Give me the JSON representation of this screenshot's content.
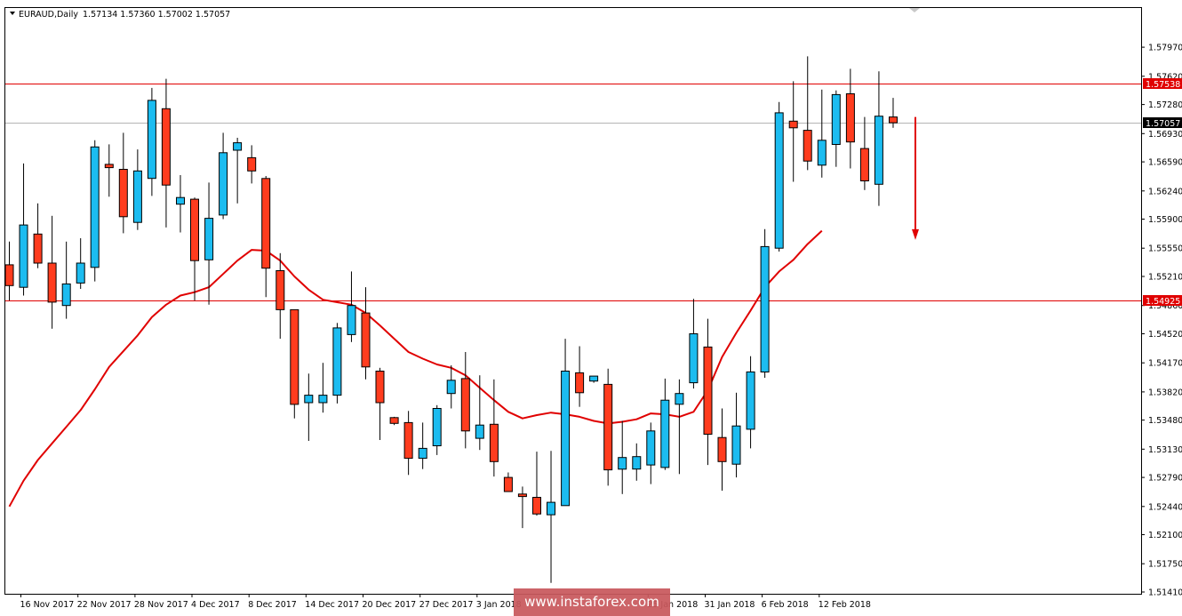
{
  "chart_header": {
    "symbol": "EURAUD,Daily",
    "ohlc": "1.57134 1.57360 1.57002 1.57057"
  },
  "watermark": "www.instaforex.com",
  "colors": {
    "bull_body": "#1cbcf0",
    "bear_body": "#ff3c1e",
    "ma_line": "#e00000",
    "level_line": "#e00000",
    "current_price_line": "#b4b4b4",
    "arrow": "#e00000"
  },
  "chart_data": {
    "type": "candlestick",
    "symbol": "EURAUD",
    "timeframe": "Daily",
    "ylim": [
      1.5141,
      1.581
    ],
    "y_ticks": [
      "1.57970",
      "1.57620",
      "1.57280",
      "1.56930",
      "1.56590",
      "1.56240",
      "1.55900",
      "1.55550",
      "1.55210",
      "1.54860",
      "1.54520",
      "1.54170",
      "1.53820",
      "1.53480",
      "1.53130",
      "1.52790",
      "1.52440",
      "1.52100",
      "1.51750",
      "1.51410"
    ],
    "x_tick_labels": [
      {
        "index": 1,
        "label": "16 Nov 2017"
      },
      {
        "index": 5,
        "label": "22 Nov 2017"
      },
      {
        "index": 9,
        "label": "28 Nov 2017"
      },
      {
        "index": 13,
        "label": "4 Dec 2017"
      },
      {
        "index": 17,
        "label": "8 Dec 2017"
      },
      {
        "index": 21,
        "label": "14 Dec 2017"
      },
      {
        "index": 25,
        "label": "20 Dec 2017"
      },
      {
        "index": 29,
        "label": "27 Dec 2017"
      },
      {
        "index": 33,
        "label": "3 Jan 2018"
      },
      {
        "index": 45,
        "label": "25 Jan 2018"
      },
      {
        "index": 49,
        "label": "31 Jan 2018"
      },
      {
        "index": 53,
        "label": "6 Feb 2018"
      },
      {
        "index": 57,
        "label": "12 Feb 2018"
      }
    ],
    "candles": [
      {
        "o": 1.5535,
        "h": 1.5563,
        "l": 1.5492,
        "c": 1.551
      },
      {
        "o": 1.5508,
        "h": 1.5657,
        "l": 1.5498,
        "c": 1.5583
      },
      {
        "o": 1.5572,
        "h": 1.5609,
        "l": 1.5531,
        "c": 1.5537
      },
      {
        "o": 1.5537,
        "h": 1.5594,
        "l": 1.5458,
        "c": 1.549
      },
      {
        "o": 1.5486,
        "h": 1.5563,
        "l": 1.547,
        "c": 1.5512
      },
      {
        "o": 1.5513,
        "h": 1.5567,
        "l": 1.5506,
        "c": 1.5537
      },
      {
        "o": 1.5532,
        "h": 1.5685,
        "l": 1.5515,
        "c": 1.5677
      },
      {
        "o": 1.5656,
        "h": 1.568,
        "l": 1.5617,
        "c": 1.5652
      },
      {
        "o": 1.565,
        "h": 1.5694,
        "l": 1.5573,
        "c": 1.5593
      },
      {
        "o": 1.5586,
        "h": 1.5674,
        "l": 1.5577,
        "c": 1.5648
      },
      {
        "o": 1.5639,
        "h": 1.5748,
        "l": 1.5618,
        "c": 1.5733
      },
      {
        "o": 1.5723,
        "h": 1.5759,
        "l": 1.558,
        "c": 1.5631
      },
      {
        "o": 1.5608,
        "h": 1.5643,
        "l": 1.5574,
        "c": 1.5616
      },
      {
        "o": 1.5614,
        "h": 1.5616,
        "l": 1.5492,
        "c": 1.554
      },
      {
        "o": 1.5541,
        "h": 1.5634,
        "l": 1.5487,
        "c": 1.5591
      },
      {
        "o": 1.5595,
        "h": 1.5694,
        "l": 1.559,
        "c": 1.567
      },
      {
        "o": 1.5673,
        "h": 1.5688,
        "l": 1.5609,
        "c": 1.5682
      },
      {
        "o": 1.5664,
        "h": 1.5679,
        "l": 1.5633,
        "c": 1.5648
      },
      {
        "o": 1.5639,
        "h": 1.5642,
        "l": 1.5496,
        "c": 1.5531
      },
      {
        "o": 1.5528,
        "h": 1.5549,
        "l": 1.5446,
        "c": 1.5481
      },
      {
        "o": 1.5481,
        "h": 1.5481,
        "l": 1.535,
        "c": 1.5367
      },
      {
        "o": 1.5369,
        "h": 1.5404,
        "l": 1.5323,
        "c": 1.5378
      },
      {
        "o": 1.5369,
        "h": 1.5417,
        "l": 1.5357,
        "c": 1.5378
      },
      {
        "o": 1.5378,
        "h": 1.5465,
        "l": 1.5368,
        "c": 1.5459
      },
      {
        "o": 1.5451,
        "h": 1.5527,
        "l": 1.5442,
        "c": 1.5486
      },
      {
        "o": 1.5477,
        "h": 1.5508,
        "l": 1.5397,
        "c": 1.5412
      },
      {
        "o": 1.5407,
        "h": 1.5411,
        "l": 1.5324,
        "c": 1.5369
      },
      {
        "o": 1.5351,
        "h": 1.5352,
        "l": 1.5342,
        "c": 1.5344
      },
      {
        "o": 1.5345,
        "h": 1.5359,
        "l": 1.5282,
        "c": 1.5302
      },
      {
        "o": 1.5302,
        "h": 1.5345,
        "l": 1.5289,
        "c": 1.5314
      },
      {
        "o": 1.5317,
        "h": 1.5366,
        "l": 1.5306,
        "c": 1.5362
      },
      {
        "o": 1.538,
        "h": 1.5414,
        "l": 1.5362,
        "c": 1.5396
      },
      {
        "o": 1.5398,
        "h": 1.543,
        "l": 1.5314,
        "c": 1.5335
      },
      {
        "o": 1.5326,
        "h": 1.5402,
        "l": 1.5312,
        "c": 1.5342
      },
      {
        "o": 1.5343,
        "h": 1.5397,
        "l": 1.528,
        "c": 1.5298
      },
      {
        "o": 1.5279,
        "h": 1.5285,
        "l": 1.5262,
        "c": 1.5262
      },
      {
        "o": 1.5259,
        "h": 1.5268,
        "l": 1.5218,
        "c": 1.5256
      },
      {
        "o": 1.5255,
        "h": 1.531,
        "l": 1.5233,
        "c": 1.5235
      },
      {
        "o": 1.5234,
        "h": 1.5311,
        "l": 1.5152,
        "c": 1.5249
      },
      {
        "o": 1.5245,
        "h": 1.5446,
        "l": 1.5245,
        "c": 1.5407
      },
      {
        "o": 1.5405,
        "h": 1.5437,
        "l": 1.5364,
        "c": 1.5381
      },
      {
        "o": 1.5395,
        "h": 1.5401,
        "l": 1.5393,
        "c": 1.5401
      },
      {
        "o": 1.5391,
        "h": 1.541,
        "l": 1.5269,
        "c": 1.5288
      },
      {
        "o": 1.5289,
        "h": 1.5347,
        "l": 1.5259,
        "c": 1.5303
      },
      {
        "o": 1.5289,
        "h": 1.532,
        "l": 1.5275,
        "c": 1.5304
      },
      {
        "o": 1.5294,
        "h": 1.5345,
        "l": 1.5271,
        "c": 1.5335
      },
      {
        "o": 1.5291,
        "h": 1.5398,
        "l": 1.5288,
        "c": 1.5372
      },
      {
        "o": 1.5367,
        "h": 1.5397,
        "l": 1.5283,
        "c": 1.538
      },
      {
        "o": 1.5393,
        "h": 1.5494,
        "l": 1.5386,
        "c": 1.5452
      },
      {
        "o": 1.5436,
        "h": 1.547,
        "l": 1.5294,
        "c": 1.5331
      },
      {
        "o": 1.5327,
        "h": 1.5362,
        "l": 1.5263,
        "c": 1.5298
      },
      {
        "o": 1.5295,
        "h": 1.5381,
        "l": 1.5279,
        "c": 1.5341
      },
      {
        "o": 1.5337,
        "h": 1.5425,
        "l": 1.5314,
        "c": 1.5406
      },
      {
        "o": 1.5406,
        "h": 1.5578,
        "l": 1.5399,
        "c": 1.5557
      },
      {
        "o": 1.5555,
        "h": 1.5731,
        "l": 1.5551,
        "c": 1.5718
      },
      {
        "o": 1.5708,
        "h": 1.5756,
        "l": 1.5635,
        "c": 1.57
      },
      {
        "o": 1.5697,
        "h": 1.5786,
        "l": 1.5649,
        "c": 1.566
      },
      {
        "o": 1.5655,
        "h": 1.5746,
        "l": 1.564,
        "c": 1.5685
      },
      {
        "o": 1.568,
        "h": 1.5745,
        "l": 1.5653,
        "c": 1.574
      },
      {
        "o": 1.5741,
        "h": 1.5771,
        "l": 1.5651,
        "c": 1.5683
      },
      {
        "o": 1.5675,
        "h": 1.5713,
        "l": 1.5625,
        "c": 1.5636
      },
      {
        "o": 1.5632,
        "h": 1.5768,
        "l": 1.5606,
        "c": 1.5714
      },
      {
        "o": 1.5713,
        "h": 1.5736,
        "l": 1.57,
        "c": 1.5706
      }
    ],
    "ma_series": {
      "type": "line",
      "values": [
        1.5244,
        1.5275,
        1.53,
        1.532,
        1.534,
        1.536,
        1.5385,
        1.5412,
        1.5431,
        1.545,
        1.5472,
        1.5487,
        1.5498,
        1.5502,
        1.5508,
        1.5524,
        1.554,
        1.5553,
        1.5552,
        1.554,
        1.5521,
        1.5505,
        1.5493,
        1.549,
        1.5487,
        1.5477,
        1.5462,
        1.5446,
        1.543,
        1.5422,
        1.5415,
        1.5411,
        1.5402,
        1.5387,
        1.5372,
        1.5358,
        1.535,
        1.5354,
        1.5357,
        1.5355,
        1.5352,
        1.5347,
        1.5344,
        1.5346,
        1.5349,
        1.5356,
        1.5355,
        1.5352,
        1.5358,
        1.5384,
        1.5424,
        1.5453,
        1.548,
        1.5508,
        1.5527,
        1.5541,
        1.556,
        1.5576
      ]
    },
    "horizontal_levels": [
      {
        "value": 1.57538,
        "label": "1.57538"
      },
      {
        "value": 1.54925,
        "label": "1.54925"
      }
    ],
    "current_price": {
      "value": 1.57057,
      "label": "1.57057"
    },
    "annotation": {
      "type": "arrow",
      "direction": "down",
      "from": 1.5713,
      "to": 1.5565
    }
  }
}
